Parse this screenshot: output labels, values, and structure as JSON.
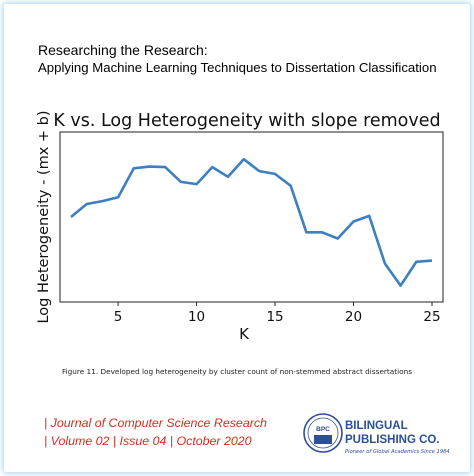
{
  "header": {
    "line1": "Researching the Research:",
    "line2": "Applying Machine Learning Techniques to Dissertation Classification"
  },
  "chart_data": {
    "type": "line",
    "title": "K vs. Log Heterogeneity with slope removed",
    "xlabel": "K",
    "ylabel": "Log Heterogeneity - (mx + b)",
    "x_ticks": [
      5,
      10,
      15,
      20,
      25
    ],
    "xlim": [
      1.3,
      25.7
    ],
    "ylim": [
      -1.5,
      1.5
    ],
    "series_color": "#3e7fc1",
    "x": [
      2,
      3,
      4,
      5,
      6,
      7,
      8,
      9,
      10,
      11,
      12,
      13,
      14,
      15,
      16,
      17,
      18,
      19,
      20,
      21,
      22,
      23,
      24,
      25
    ],
    "values": [
      0.0,
      0.23,
      0.28,
      0.35,
      0.86,
      0.89,
      0.88,
      0.62,
      0.58,
      0.88,
      0.71,
      1.02,
      0.81,
      0.76,
      0.55,
      -0.27,
      -0.27,
      -0.38,
      -0.08,
      0.02,
      -0.82,
      -1.21,
      -0.79,
      -0.77
    ]
  },
  "caption": "Figure 11. Developed log heterogeneity by cluster count of non-stemmed abstract dissertations",
  "footer": {
    "journal_line1": "| Journal of Computer Science Research",
    "journal_line2": "| Volume 02 | Issue 04 | October 2020",
    "publisher_line1": "BILINGUAL",
    "publisher_line2": "PUBLISHING CO.",
    "publisher_tagline": "Pioneer of Global Academics Since 1984",
    "logo_text": "BPC"
  }
}
